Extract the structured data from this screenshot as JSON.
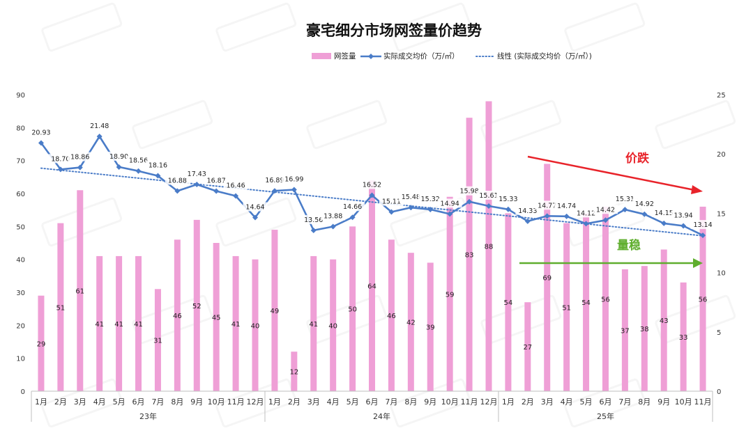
{
  "chart_data": {
    "type": "bar+line",
    "title": "豪宅细分市场网签量价趋势",
    "legend": {
      "placement": "top-right",
      "items": [
        {
          "label": "网签量",
          "kind": "bar"
        },
        {
          "label": "实际成交均价（万/㎡）",
          "kind": "line"
        },
        {
          "label": "线性 (实际成交均价（万/㎡）)",
          "kind": "trend"
        }
      ]
    },
    "categories": [
      "1月",
      "2月",
      "3月",
      "4月",
      "5月",
      "6月",
      "7月",
      "8月",
      "9月",
      "10月",
      "11月",
      "12月",
      "1月",
      "2月",
      "3月",
      "4月",
      "5月",
      "6月",
      "7月",
      "8月",
      "9月",
      "10月",
      "11月",
      "12月",
      "1月",
      "2月",
      "3月",
      "4月",
      "5月",
      "6月",
      "7月",
      "8月",
      "9月",
      "10月",
      "11月"
    ],
    "year_groups": [
      {
        "label": "23年",
        "count": 12
      },
      {
        "label": "24年",
        "count": 12
      },
      {
        "label": "25年",
        "count": 11
      }
    ],
    "series": [
      {
        "name": "网签量",
        "axis": "left",
        "values": [
          29,
          51,
          61,
          41,
          41,
          41,
          31,
          46,
          52,
          45,
          41,
          40,
          49,
          12,
          41,
          40,
          50,
          64,
          46,
          42,
          39,
          59,
          83,
          88,
          54,
          27,
          69,
          51,
          54,
          56,
          37,
          38,
          43,
          33,
          56
        ]
      },
      {
        "name": "实际成交均价（万/㎡）",
        "axis": "right",
        "values": [
          20.93,
          18.7,
          18.86,
          21.48,
          18.9,
          18.56,
          18.16,
          16.88,
          17.43,
          16.87,
          16.46,
          14.64,
          16.89,
          16.99,
          13.56,
          13.88,
          14.66,
          16.52,
          15.11,
          15.48,
          15.32,
          14.94,
          15.98,
          15.61,
          15.33,
          14.33,
          14.77,
          14.74,
          14.12,
          14.42,
          15.31,
          14.92,
          14.15,
          13.94,
          13.14
        ]
      }
    ],
    "trend": {
      "name": "线性 (实际成交均价（万/㎡）)",
      "start": 18.8,
      "end": 13.1
    },
    "y_left": {
      "min": 0,
      "max": 90,
      "ticks": [
        0,
        10,
        20,
        30,
        40,
        50,
        60,
        70,
        80,
        90
      ]
    },
    "y_right": {
      "min": 0,
      "max": 25,
      "ticks": [
        0,
        5,
        10,
        15,
        20,
        25
      ]
    },
    "annotations": {
      "price": {
        "label": "价跌",
        "color": "#e8232a"
      },
      "volume": {
        "label": "量稳",
        "color": "#5fae2e"
      }
    },
    "colors": {
      "bar": "#ef9fd6",
      "line": "#4a7cc8",
      "trend": "#4a7cc8",
      "axis_text": "#333333",
      "title": "#111111"
    }
  }
}
